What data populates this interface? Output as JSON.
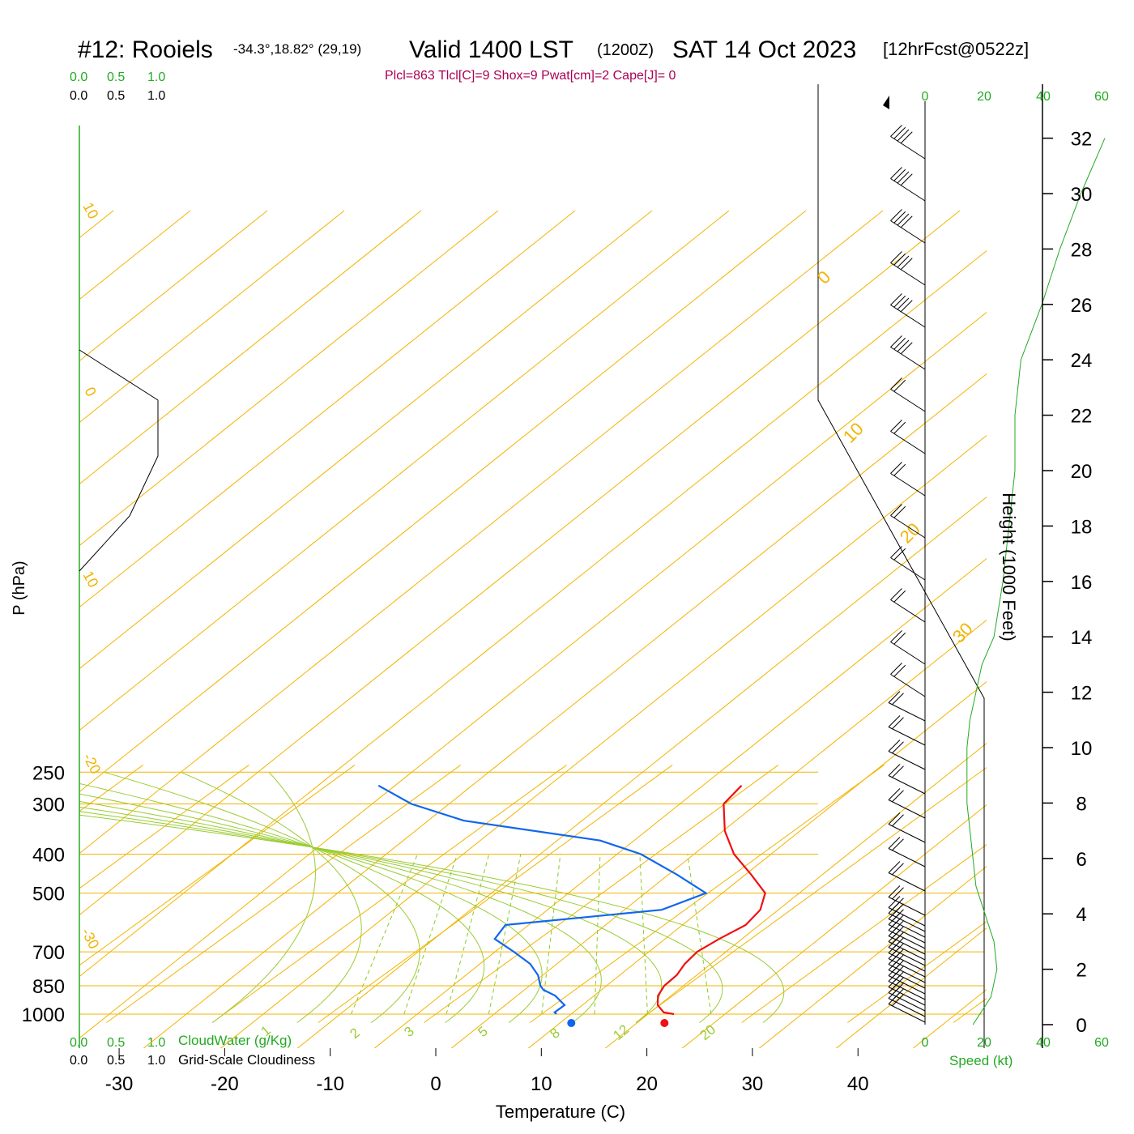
{
  "header": {
    "station": "#12: Rooiels",
    "coords": "-34.3°,18.82° (29,19)",
    "valid": "Valid 1400 LST",
    "zulu": "(1200Z)",
    "date": "SAT 14 Oct 2023",
    "forecast": "[12hrFcst@0522z]",
    "indices": "Plcl=863 Tlcl[C]=9 Shox=9 Pwat[cm]=2 Cape[J]= 0"
  },
  "cloud": {
    "water_label": "CloudWater (g/Kg)",
    "cover_label": "Grid-Scale Cloudiness",
    "ticks": [
      "0.0",
      "0.5",
      "1.0"
    ]
  },
  "speed": {
    "label": "Speed (kt)",
    "ticks": [
      "0",
      "20",
      "40",
      "60"
    ]
  },
  "colors": {
    "temperature": "#ee1111",
    "dewpoint": "#1166ee",
    "isobar": "#f2b400",
    "mixing_ratio": "#88cc22",
    "adiabat": "#99cc33",
    "speed": "#22aa22",
    "indices": "#aa0055"
  },
  "chart_data": {
    "type": "line",
    "title": "#12: Rooiels  Valid 1400 LST (1200Z) SAT 14 Oct 2023",
    "xlabel": "Temperature (C)",
    "ylabel": "P (hPa)",
    "y2label": "Height (1000 Feet)",
    "x_ticks": [
      -30,
      -20,
      -10,
      0,
      10,
      20,
      30,
      40
    ],
    "p_ticks": [
      250,
      300,
      400,
      500,
      700,
      850,
      1000
    ],
    "height_ticks": [
      0,
      2,
      4,
      6,
      8,
      10,
      12,
      14,
      16,
      18,
      20,
      22,
      24,
      26,
      28,
      30,
      32
    ],
    "xlim": [
      -30,
      40
    ],
    "ylim": [
      1000,
      250
    ],
    "isotherm_labels": [
      "10",
      "0",
      "10",
      "-20",
      "-30",
      "0",
      "10",
      "20",
      "30"
    ],
    "mixing_ratio_labels": [
      "1",
      "2",
      "3",
      "5",
      "8",
      "12",
      "20"
    ],
    "series": [
      {
        "name": "Temperature",
        "points": [
          [
            1000,
            22.5
          ],
          [
            990,
            21.3
          ],
          [
            950,
            19.8
          ],
          [
            900,
            18.6
          ],
          [
            850,
            17.9
          ],
          [
            800,
            17.7
          ],
          [
            750,
            17.0
          ],
          [
            700,
            16.6
          ],
          [
            650,
            17.0
          ],
          [
            600,
            17.7
          ],
          [
            550,
            17.1
          ],
          [
            500,
            15.4
          ],
          [
            450,
            11.7
          ],
          [
            400,
            7.4
          ],
          [
            350,
            3.5
          ],
          [
            300,
            -0.1
          ],
          [
            270,
            -0.8
          ]
        ]
      },
      {
        "name": "Dewpoint",
        "points": [
          [
            1000,
            11.4
          ],
          [
            990,
            11.0
          ],
          [
            950,
            11.0
          ],
          [
            900,
            8.9
          ],
          [
            870,
            7.0
          ],
          [
            850,
            6.2
          ],
          [
            800,
            4.6
          ],
          [
            750,
            2.4
          ],
          [
            700,
            -0.7
          ],
          [
            650,
            -4.2
          ],
          [
            600,
            -5.0
          ],
          [
            550,
            7.8
          ],
          [
            500,
            9.8
          ],
          [
            450,
            4.7
          ],
          [
            400,
            -1.4
          ],
          [
            370,
            -7.0
          ],
          [
            330,
            -22.5
          ],
          [
            300,
            -29.6
          ],
          [
            270,
            -35.1
          ]
        ]
      }
    ],
    "surface_dots": [
      {
        "name": "surface temperature",
        "p": 1000,
        "t": 21.6
      },
      {
        "name": "surface dewpoint",
        "p": 1000,
        "t": 12.8
      }
    ],
    "wind_speed_kt": [
      [
        0,
        16
      ],
      [
        1,
        22
      ],
      [
        2,
        24
      ],
      [
        3,
        23
      ],
      [
        4,
        20
      ],
      [
        5,
        17
      ],
      [
        6,
        16
      ],
      [
        7,
        15
      ],
      [
        8,
        14
      ],
      [
        9,
        14
      ],
      [
        10,
        14
      ],
      [
        11,
        15
      ],
      [
        12,
        17
      ],
      [
        13,
        19
      ],
      [
        14,
        23
      ],
      [
        16,
        26
      ],
      [
        18,
        28
      ],
      [
        20,
        30
      ],
      [
        22,
        30
      ],
      [
        24,
        32
      ],
      [
        26,
        39
      ],
      [
        28,
        45
      ],
      [
        30,
        52
      ],
      [
        32,
        60
      ]
    ],
    "cloud_cover_outline": [
      [
        250,
        0.0
      ],
      [
        400,
        0.96
      ],
      [
        440,
        0.96
      ],
      [
        480,
        0.68
      ],
      [
        510,
        0.0
      ]
    ]
  }
}
